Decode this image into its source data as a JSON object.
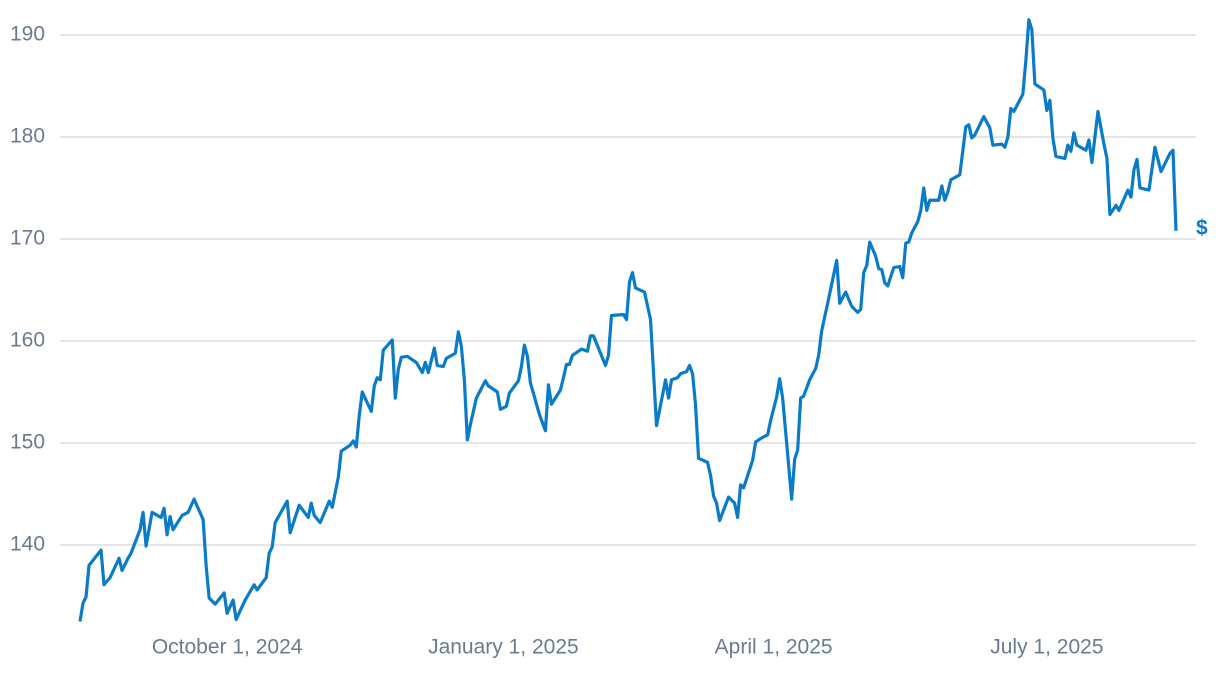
{
  "chart_data": {
    "type": "line",
    "color": "#0a7bc7",
    "end_label": "$",
    "grid": true,
    "ylim": [
      132,
      192
    ],
    "yticks": [
      140,
      150,
      160,
      170,
      180,
      190
    ],
    "xlim": [
      "2024-08-13",
      "2025-08-13"
    ],
    "xticks": [
      {
        "value": "2024-10-01",
        "label": "October 1, 2024"
      },
      {
        "value": "2025-01-01",
        "label": "January 1, 2025"
      },
      {
        "value": "2025-04-01",
        "label": "April 1, 2025"
      },
      {
        "value": "2025-07-01",
        "label": "July 1, 2025"
      }
    ],
    "x": [
      "2024-08-13",
      "2024-08-14",
      "2024-08-15",
      "2024-08-16",
      "2024-08-20",
      "2024-08-21",
      "2024-08-23",
      "2024-08-26",
      "2024-08-27",
      "2024-08-29",
      "2024-08-30",
      "2024-09-02",
      "2024-09-03",
      "2024-09-04",
      "2024-09-06",
      "2024-09-09",
      "2024-09-10",
      "2024-09-11",
      "2024-09-12",
      "2024-09-13",
      "2024-09-16",
      "2024-09-18",
      "2024-09-20",
      "2024-09-23",
      "2024-09-24",
      "2024-09-25",
      "2024-09-27",
      "2024-09-30",
      "2024-10-01",
      "2024-10-03",
      "2024-10-04",
      "2024-10-07",
      "2024-10-10",
      "2024-10-11",
      "2024-10-14",
      "2024-10-15",
      "2024-10-16",
      "2024-10-17",
      "2024-10-21",
      "2024-10-22",
      "2024-10-25",
      "2024-10-28",
      "2024-10-29",
      "2024-10-30",
      "2024-11-01",
      "2024-11-04",
      "2024-11-05",
      "2024-11-07",
      "2024-11-08",
      "2024-11-11",
      "2024-11-12",
      "2024-11-13",
      "2024-11-14",
      "2024-11-15",
      "2024-11-18",
      "2024-11-19",
      "2024-11-20",
      "2024-11-21",
      "2024-11-22",
      "2024-11-25",
      "2024-11-26",
      "2024-11-27",
      "2024-11-28",
      "2024-11-30",
      "2024-12-03",
      "2024-12-05",
      "2024-12-06",
      "2024-12-07",
      "2024-12-09",
      "2024-12-10",
      "2024-12-12",
      "2024-12-13",
      "2024-12-16",
      "2024-12-17",
      "2024-12-18",
      "2024-12-19",
      "2024-12-20",
      "2024-12-21",
      "2024-12-23",
      "2024-12-26",
      "2024-12-27",
      "2024-12-30",
      "2024-12-31",
      "2025-01-02",
      "2025-01-03",
      "2025-01-06",
      "2025-01-07",
      "2025-01-08",
      "2025-01-09",
      "2025-01-10",
      "2025-01-13",
      "2025-01-15",
      "2025-01-16",
      "2025-01-17",
      "2025-01-20",
      "2025-01-21",
      "2025-01-22",
      "2025-01-23",
      "2025-01-24",
      "2025-01-27",
      "2025-01-29",
      "2025-01-30",
      "2025-01-31",
      "2025-02-04",
      "2025-02-05",
      "2025-02-06",
      "2025-02-10",
      "2025-02-11",
      "2025-02-12",
      "2025-02-13",
      "2025-02-14",
      "2025-02-17",
      "2025-02-19",
      "2025-02-21",
      "2025-02-24",
      "2025-02-25",
      "2025-02-26",
      "2025-02-28",
      "2025-03-01",
      "2025-03-03",
      "2025-03-04",
      "2025-03-05",
      "2025-03-06",
      "2025-03-07",
      "2025-03-10",
      "2025-03-11",
      "2025-03-12",
      "2025-03-13",
      "2025-03-14",
      "2025-03-17",
      "2025-03-19",
      "2025-03-20",
      "2025-03-21",
      "2025-03-22",
      "2025-03-24",
      "2025-03-25",
      "2025-03-26",
      "2025-03-28",
      "2025-03-30",
      "2025-03-31",
      "2025-04-02",
      "2025-04-03",
      "2025-04-04",
      "2025-04-07",
      "2025-04-08",
      "2025-04-09",
      "2025-04-10",
      "2025-04-11",
      "2025-04-13",
      "2025-04-15",
      "2025-04-16",
      "2025-04-17",
      "2025-04-19",
      "2025-04-22",
      "2025-04-23",
      "2025-04-25",
      "2025-04-27",
      "2025-04-29",
      "2025-04-30",
      "2025-05-01",
      "2025-05-02",
      "2025-05-03",
      "2025-05-05",
      "2025-05-06",
      "2025-05-07",
      "2025-05-08",
      "2025-05-09",
      "2025-05-11",
      "2025-05-13",
      "2025-05-14",
      "2025-05-15",
      "2025-05-16",
      "2025-05-17",
      "2025-05-19",
      "2025-05-20",
      "2025-05-21",
      "2025-05-22",
      "2025-05-23",
      "2025-05-26",
      "2025-05-27",
      "2025-05-28",
      "2025-05-29",
      "2025-05-30",
      "2025-06-02",
      "2025-06-04",
      "2025-06-05",
      "2025-06-06",
      "2025-06-07",
      "2025-06-10",
      "2025-06-12",
      "2025-06-13",
      "2025-06-16",
      "2025-06-17",
      "2025-06-18",
      "2025-06-19",
      "2025-06-20",
      "2025-06-23",
      "2025-06-24",
      "2025-06-25",
      "2025-06-26",
      "2025-06-27",
      "2025-06-30",
      "2025-07-01",
      "2025-07-02",
      "2025-07-03",
      "2025-07-04",
      "2025-07-07",
      "2025-07-08",
      "2025-07-09",
      "2025-07-10",
      "2025-07-11",
      "2025-07-14",
      "2025-07-15",
      "2025-07-16",
      "2025-07-18",
      "2025-07-20",
      "2025-07-21",
      "2025-07-22",
      "2025-07-24",
      "2025-07-25",
      "2025-07-28",
      "2025-07-29",
      "2025-07-30",
      "2025-07-31",
      "2025-08-01",
      "2025-08-04",
      "2025-08-06",
      "2025-08-08",
      "2025-08-11",
      "2025-08-12",
      "2025-08-13"
    ],
    "values": [
      132.5,
      134.3,
      134.9,
      138.0,
      139.5,
      136.1,
      136.8,
      138.7,
      137.5,
      138.7,
      139.2,
      141.5,
      143.2,
      139.9,
      143.2,
      142.7,
      143.6,
      141.0,
      142.8,
      141.5,
      142.9,
      143.2,
      144.5,
      142.5,
      138.0,
      134.8,
      134.2,
      135.3,
      133.3,
      134.6,
      132.7,
      134.6,
      136.1,
      135.6,
      136.8,
      139.2,
      139.8,
      142.2,
      144.3,
      141.2,
      143.9,
      142.7,
      144.1,
      142.9,
      142.2,
      144.3,
      143.7,
      146.6,
      149.2,
      149.8,
      150.2,
      149.6,
      152.7,
      155.0,
      153.1,
      155.6,
      156.4,
      156.2,
      159.1,
      160.1,
      154.4,
      157.2,
      158.4,
      158.5,
      157.9,
      156.9,
      157.9,
      156.9,
      159.3,
      157.6,
      157.5,
      158.3,
      158.8,
      160.9,
      159.5,
      156.2,
      150.3,
      151.8,
      154.4,
      156.1,
      155.6,
      155.0,
      153.3,
      153.6,
      154.9,
      156.1,
      157.5,
      159.6,
      158.5,
      155.9,
      152.8,
      151.2,
      155.7,
      153.8,
      155.2,
      156.4,
      157.7,
      157.7,
      158.6,
      159.2,
      159.0,
      160.5,
      160.5,
      157.6,
      158.6,
      162.5,
      162.6,
      162.1,
      165.8,
      166.7,
      165.2,
      164.8,
      162.1,
      151.7,
      156.2,
      154.4,
      156.2,
      156.4,
      156.8,
      157.0,
      157.6,
      156.8,
      153.7,
      148.5,
      148.1,
      146.8,
      144.8,
      144.1,
      142.4,
      144.7,
      144.1,
      142.7,
      145.9,
      145.6,
      147.4,
      148.3,
      150.1,
      150.5,
      150.8,
      152.2,
      154.5,
      156.3,
      154.4,
      144.5,
      148.4,
      149.3,
      154.4,
      154.6,
      156.2,
      157.3,
      158.6,
      161.0,
      163.7,
      167.9,
      163.7,
      164.8,
      163.4,
      162.8,
      163.1,
      166.7,
      167.4,
      169.7,
      168.3,
      167.1,
      167.0,
      165.7,
      165.4,
      167.2,
      167.3,
      166.2,
      169.6,
      169.7,
      170.6,
      171.7,
      172.8,
      175.0,
      172.8,
      173.8,
      173.8,
      175.2,
      173.8,
      174.6,
      175.8,
      176.3,
      181.0,
      181.2,
      179.9,
      180.2,
      182.0,
      180.9,
      179.2,
      179.3,
      179.0,
      180.0,
      182.8,
      182.5,
      184.2,
      187.5,
      191.5,
      190.5,
      185.2,
      184.6,
      182.6,
      183.6,
      179.9,
      178.1,
      177.9,
      179.2,
      178.6,
      180.4,
      179.2,
      178.7,
      179.7,
      177.5,
      182.5,
      179.3,
      177.9,
      172.4,
      173.3,
      172.8,
      174.8,
      174.1,
      176.8,
      177.8,
      175.0,
      174.8,
      179.0,
      176.6,
      178.4,
      178.7,
      170.8
    ]
  }
}
